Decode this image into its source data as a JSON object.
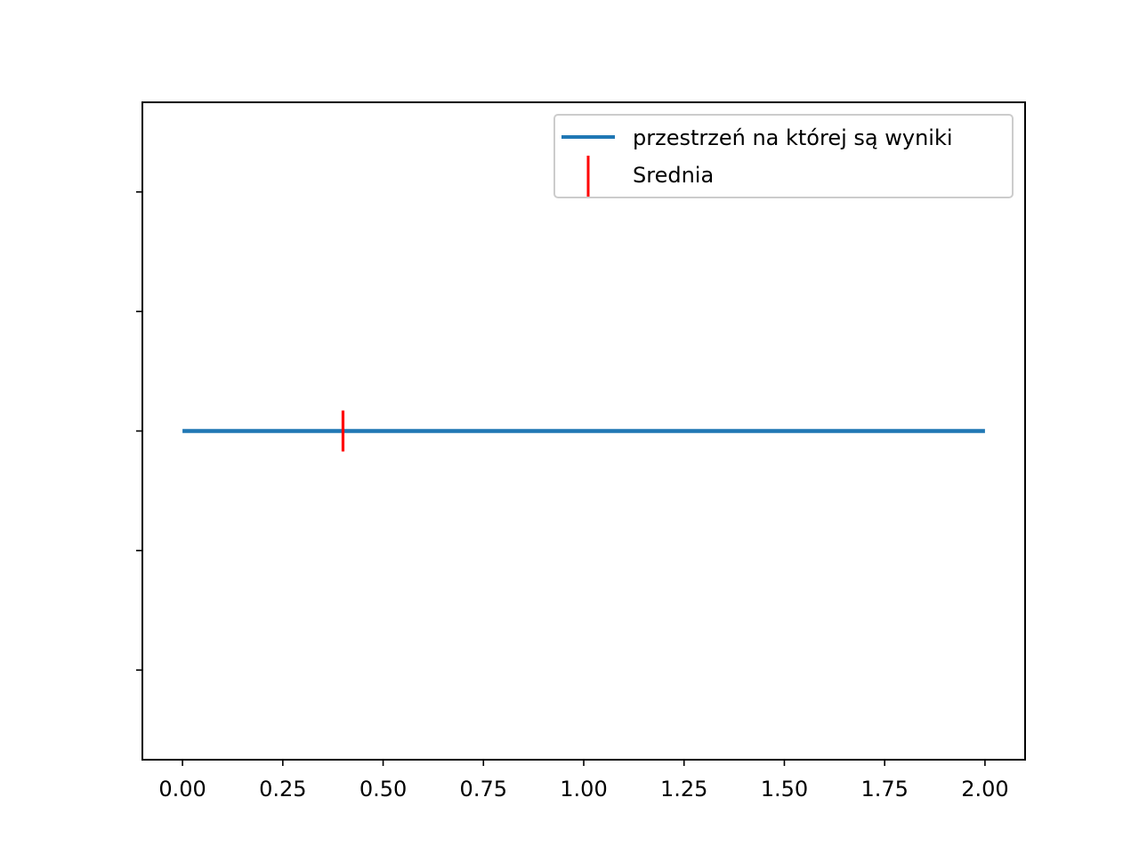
{
  "chart_data": {
    "type": "line",
    "title": "",
    "xlabel": "",
    "ylabel": "",
    "xlim": [
      -0.1,
      2.1
    ],
    "ylim": [
      -0.055,
      0.055
    ],
    "x_ticks": [
      {
        "value": 0.0,
        "label": "0.00"
      },
      {
        "value": 0.25,
        "label": "0.25"
      },
      {
        "value": 0.5,
        "label": "0.50"
      },
      {
        "value": 0.75,
        "label": "0.75"
      },
      {
        "value": 1.0,
        "label": "1.00"
      },
      {
        "value": 1.25,
        "label": "1.25"
      },
      {
        "value": 1.5,
        "label": "1.50"
      },
      {
        "value": 1.75,
        "label": "1.75"
      },
      {
        "value": 2.0,
        "label": "2.00"
      }
    ],
    "y_ticks": [
      -0.04,
      -0.02,
      0.0,
      0.02,
      0.04
    ],
    "y_tick_labels_shown": false,
    "grid": false,
    "legend_position": "top-right",
    "series": [
      {
        "name": "przestrzeń na której są wyniki",
        "kind": "line",
        "color": "#1f77b4",
        "x": [
          0.0,
          2.0
        ],
        "y": [
          0.0,
          0.0
        ]
      },
      {
        "name": "Srednia",
        "kind": "marker-vline",
        "color": "#ff0000",
        "x": [
          0.4
        ],
        "y": [
          0.0
        ]
      }
    ]
  }
}
